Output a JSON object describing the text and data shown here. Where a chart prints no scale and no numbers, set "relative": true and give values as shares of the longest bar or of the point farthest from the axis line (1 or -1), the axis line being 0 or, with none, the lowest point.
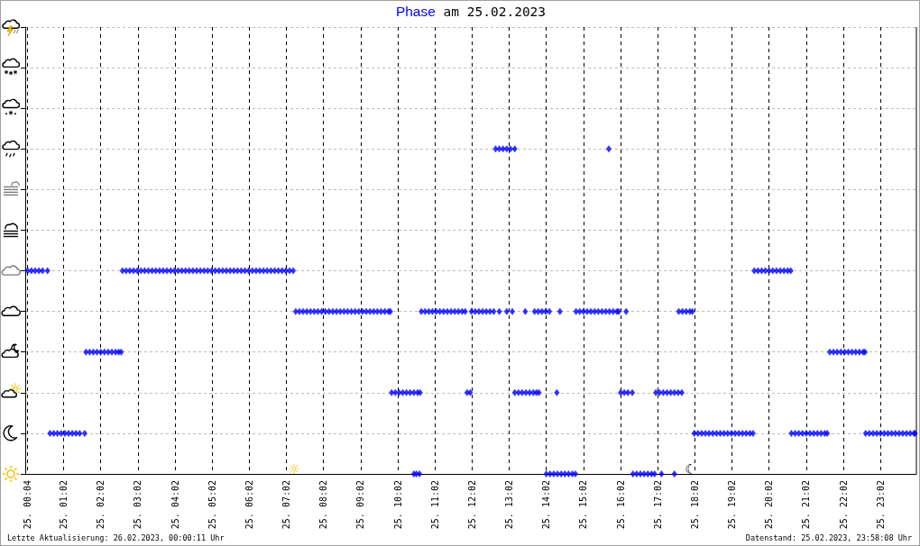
{
  "chart_data": {
    "type": "scatter",
    "title": "am 25.02.2023",
    "legend": "top",
    "marker": "diamond",
    "grid": true,
    "relative": true,
    "xlim": [
      "2023-02-25T00:00",
      "2023-02-26T00:00"
    ],
    "xticks": [
      {
        "value": "2023-02-25T00:04",
        "label": "25. 00:04"
      },
      {
        "value": "2023-02-25T01:02",
        "label": "25. 01:02"
      },
      {
        "value": "2023-02-25T02:02",
        "label": "25. 02:02"
      },
      {
        "value": "2023-02-25T03:02",
        "label": "25. 03:02"
      },
      {
        "value": "2023-02-25T04:02",
        "label": "25. 04:02"
      },
      {
        "value": "2023-02-25T05:02",
        "label": "25. 05:02"
      },
      {
        "value": "2023-02-25T06:02",
        "label": "25. 06:02"
      },
      {
        "value": "2023-02-25T07:02",
        "label": "25. 07:02"
      },
      {
        "value": "2023-02-25T08:02",
        "label": "25. 08:02"
      },
      {
        "value": "2023-02-25T09:02",
        "label": "25. 09:02"
      },
      {
        "value": "2023-02-25T10:02",
        "label": "25. 10:02"
      },
      {
        "value": "2023-02-25T11:02",
        "label": "25. 11:02"
      },
      {
        "value": "2023-02-25T12:02",
        "label": "25. 12:02"
      },
      {
        "value": "2023-02-25T13:02",
        "label": "25. 13:02"
      },
      {
        "value": "2023-02-25T14:02",
        "label": "25. 14:02"
      },
      {
        "value": "2023-02-25T15:02",
        "label": "25. 15:02"
      },
      {
        "value": "2023-02-25T16:02",
        "label": "25. 16:02"
      },
      {
        "value": "2023-02-25T17:02",
        "label": "25. 17:02"
      },
      {
        "value": "2023-02-25T18:02",
        "label": "25. 18:02"
      },
      {
        "value": "2023-02-25T19:02",
        "label": "25. 19:02"
      },
      {
        "value": "2023-02-25T20:02",
        "label": "25. 20:02"
      },
      {
        "value": "2023-02-25T21:02",
        "label": "25. 21:02"
      },
      {
        "value": "2023-02-25T22:02",
        "label": "25. 22:02"
      },
      {
        "value": "2023-02-25T23:02",
        "label": "25. 23:02"
      }
    ],
    "x": [
      "2023-02-25T00:04",
      "2023-02-25T00:10",
      "2023-02-25T00:16",
      "2023-02-25T00:22",
      "2023-02-25T00:28",
      "2023-02-25T00:36",
      "2023-02-25T00:40",
      "2023-02-25T00:46",
      "2023-02-25T00:52",
      "2023-02-25T00:58",
      "2023-02-25T01:04",
      "2023-02-25T01:10",
      "2023-02-25T01:16",
      "2023-02-25T01:22",
      "2023-02-25T01:28",
      "2023-02-25T01:36",
      "2023-02-25T01:38",
      "2023-02-25T01:44",
      "2023-02-25T01:50",
      "2023-02-25T01:56",
      "2023-02-25T02:02",
      "2023-02-25T02:08",
      "2023-02-25T02:14",
      "2023-02-25T02:20",
      "2023-02-25T02:26",
      "2023-02-25T02:31",
      "2023-02-25T02:35",
      "2023-02-25T02:37",
      "2023-02-25T02:43",
      "2023-02-25T02:49",
      "2023-02-25T02:55",
      "2023-02-25T03:01",
      "2023-02-25T03:07",
      "2023-02-25T03:13",
      "2023-02-25T03:19",
      "2023-02-25T03:25",
      "2023-02-25T03:31",
      "2023-02-25T03:37",
      "2023-02-25T03:43",
      "2023-02-25T03:49",
      "2023-02-25T03:55",
      "2023-02-25T04:01",
      "2023-02-25T04:07",
      "2023-02-25T04:13",
      "2023-02-25T04:19",
      "2023-02-25T04:25",
      "2023-02-25T04:31",
      "2023-02-25T04:37",
      "2023-02-25T04:43",
      "2023-02-25T04:49",
      "2023-02-25T04:55",
      "2023-02-25T05:01",
      "2023-02-25T05:07",
      "2023-02-25T05:13",
      "2023-02-25T05:19",
      "2023-02-25T05:25",
      "2023-02-25T05:31",
      "2023-02-25T05:37",
      "2023-02-25T05:43",
      "2023-02-25T05:49",
      "2023-02-25T05:55",
      "2023-02-25T06:01",
      "2023-02-25T06:07",
      "2023-02-25T06:13",
      "2023-02-25T06:19",
      "2023-02-25T06:25",
      "2023-02-25T06:31",
      "2023-02-25T06:37",
      "2023-02-25T06:43",
      "2023-02-25T06:49",
      "2023-02-25T06:55",
      "2023-02-25T07:01",
      "2023-02-25T07:07",
      "2023-02-25T07:13",
      "2023-02-25T07:17",
      "2023-02-25T07:23",
      "2023-02-25T07:29",
      "2023-02-25T07:35",
      "2023-02-25T07:41",
      "2023-02-25T07:47",
      "2023-02-25T07:53",
      "2023-02-25T07:59",
      "2023-02-25T08:05",
      "2023-02-25T08:11",
      "2023-02-25T08:17",
      "2023-02-25T08:23",
      "2023-02-25T08:29",
      "2023-02-25T08:35",
      "2023-02-25T08:41",
      "2023-02-25T08:47",
      "2023-02-25T08:53",
      "2023-02-25T08:59",
      "2023-02-25T09:05",
      "2023-02-25T09:11",
      "2023-02-25T09:17",
      "2023-02-25T09:23",
      "2023-02-25T09:29",
      "2023-02-25T09:35",
      "2023-02-25T09:41",
      "2023-02-25T09:47",
      "2023-02-25T09:50",
      "2023-02-25T09:52",
      "2023-02-25T09:58",
      "2023-02-25T10:04",
      "2023-02-25T10:10",
      "2023-02-25T10:16",
      "2023-02-25T10:22",
      "2023-02-25T10:28",
      "2023-02-25T10:34",
      "2023-02-25T10:38",
      "2023-02-25T10:28",
      "2023-02-25T10:32",
      "2023-02-25T10:37",
      "2023-02-25T10:40",
      "2023-02-25T10:46",
      "2023-02-25T10:52",
      "2023-02-25T10:58",
      "2023-02-25T11:04",
      "2023-02-25T11:10",
      "2023-02-25T11:16",
      "2023-02-25T11:22",
      "2023-02-25T11:28",
      "2023-02-25T11:34",
      "2023-02-25T11:40",
      "2023-02-25T11:46",
      "2023-02-25T11:51",
      "2023-02-25T11:54",
      "2023-02-25T11:59",
      "2023-02-25T12:01",
      "2023-02-25T12:07",
      "2023-02-25T12:13",
      "2023-02-25T12:19",
      "2023-02-25T12:25",
      "2023-02-25T12:31",
      "2023-02-25T12:37",
      "2023-02-25T12:40",
      "2023-02-25T12:46",
      "2023-02-25T12:52",
      "2023-02-25T12:58",
      "2023-02-25T13:04",
      "2023-02-25T13:11",
      "2023-02-25T12:46",
      "2023-02-25T12:58",
      "2023-02-25T13:07",
      "2023-02-25T13:28",
      "2023-02-25T13:11",
      "2023-02-25T13:17",
      "2023-02-25T13:23",
      "2023-02-25T13:29",
      "2023-02-25T13:35",
      "2023-02-25T13:41",
      "2023-02-25T13:46",
      "2023-02-25T13:50",
      "2023-02-25T13:43",
      "2023-02-25T13:49",
      "2023-02-25T13:55",
      "2023-02-25T14:01",
      "2023-02-25T14:07",
      "2023-02-25T14:02",
      "2023-02-25T14:08",
      "2023-02-25T14:14",
      "2023-02-25T14:20",
      "2023-02-25T14:26",
      "2023-02-25T14:32",
      "2023-02-25T14:38",
      "2023-02-25T14:44",
      "2023-02-25T14:49",
      "2023-02-25T14:19",
      "2023-02-25T14:24",
      "2023-02-25T14:50",
      "2023-02-25T14:56",
      "2023-02-25T15:02",
      "2023-02-25T15:08",
      "2023-02-25T15:14",
      "2023-02-25T15:20",
      "2023-02-25T15:26",
      "2023-02-25T15:32",
      "2023-02-25T15:38",
      "2023-02-25T15:44",
      "2023-02-25T15:50",
      "2023-02-25T15:56",
      "2023-02-25T15:59",
      "2023-02-25T15:43",
      "2023-02-25T16:02",
      "2023-02-25T16:08",
      "2023-02-25T16:14",
      "2023-02-25T16:21",
      "2023-02-25T16:11",
      "2023-02-25T16:22",
      "2023-02-25T16:28",
      "2023-02-25T16:34",
      "2023-02-25T16:40",
      "2023-02-25T16:46",
      "2023-02-25T16:52",
      "2023-02-25T16:57",
      "2023-02-25T16:59",
      "2023-02-25T17:05",
      "2023-02-25T17:11",
      "2023-02-25T17:17",
      "2023-02-25T17:23",
      "2023-02-25T17:29",
      "2023-02-25T17:35",
      "2023-02-25T17:41",
      "2023-02-25T17:08",
      "2023-02-25T17:29",
      "2023-02-25T17:36",
      "2023-02-25T17:42",
      "2023-02-25T17:48",
      "2023-02-25T17:54",
      "2023-02-25T17:58",
      "2023-02-25T18:01",
      "2023-02-25T18:07",
      "2023-02-25T18:13",
      "2023-02-25T18:19",
      "2023-02-25T18:25",
      "2023-02-25T18:31",
      "2023-02-25T18:37",
      "2023-02-25T18:43",
      "2023-02-25T18:49",
      "2023-02-25T18:55",
      "2023-02-25T19:01",
      "2023-02-25T19:07",
      "2023-02-25T19:13",
      "2023-02-25T19:19",
      "2023-02-25T19:25",
      "2023-02-25T19:31",
      "2023-02-25T19:36",
      "2023-02-25T19:38",
      "2023-02-25T19:44",
      "2023-02-25T19:50",
      "2023-02-25T19:56",
      "2023-02-25T20:02",
      "2023-02-25T20:08",
      "2023-02-25T20:14",
      "2023-02-25T20:20",
      "2023-02-25T20:26",
      "2023-02-25T20:32",
      "2023-02-25T20:37",
      "2023-02-25T20:38",
      "2023-02-25T20:44",
      "2023-02-25T20:50",
      "2023-02-25T20:56",
      "2023-02-25T21:02",
      "2023-02-25T21:08",
      "2023-02-25T21:14",
      "2023-02-25T21:20",
      "2023-02-25T21:26",
      "2023-02-25T21:32",
      "2023-02-25T21:36",
      "2023-02-25T21:40",
      "2023-02-25T21:46",
      "2023-02-25T21:52",
      "2023-02-25T21:58",
      "2023-02-25T22:04",
      "2023-02-25T22:10",
      "2023-02-25T22:16",
      "2023-02-25T22:22",
      "2023-02-25T22:28",
      "2023-02-25T22:34",
      "2023-02-25T22:37",
      "2023-02-25T22:38",
      "2023-02-25T22:44",
      "2023-02-25T22:50",
      "2023-02-25T22:56",
      "2023-02-25T23:02",
      "2023-02-25T23:08",
      "2023-02-25T23:14",
      "2023-02-25T23:20",
      "2023-02-25T23:26",
      "2023-02-25T23:32",
      "2023-02-25T23:38",
      "2023-02-25T23:44",
      "2023-02-25T23:50",
      "2023-02-25T23:56",
      "2023-02-25T23:58"
    ],
    "series": [
      {
        "name": "Phase",
        "color": "#0000ff",
        "values": [
          0.625,
          0.625,
          0.625,
          0.625,
          0.625,
          0.625,
          0.125,
          0.125,
          0.125,
          0.125,
          0.125,
          0.125,
          0.125,
          0.125,
          0.125,
          0.125,
          0.375,
          0.375,
          0.375,
          0.375,
          0.375,
          0.375,
          0.375,
          0.375,
          0.375,
          0.375,
          0.375,
          0.625,
          0.625,
          0.625,
          0.625,
          0.625,
          0.625,
          0.625,
          0.625,
          0.625,
          0.625,
          0.625,
          0.625,
          0.625,
          0.625,
          0.625,
          0.625,
          0.625,
          0.625,
          0.625,
          0.625,
          0.625,
          0.625,
          0.625,
          0.625,
          0.625,
          0.625,
          0.625,
          0.625,
          0.625,
          0.625,
          0.625,
          0.625,
          0.625,
          0.625,
          0.625,
          0.625,
          0.625,
          0.625,
          0.625,
          0.625,
          0.625,
          0.625,
          0.625,
          0.625,
          0.625,
          0.625,
          0.625,
          0.5,
          0.5,
          0.5,
          0.5,
          0.5,
          0.5,
          0.5,
          0.5,
          0.5,
          0.5,
          0.5,
          0.5,
          0.5,
          0.5,
          0.5,
          0.5,
          0.5,
          0.5,
          0.5,
          0.5,
          0.5,
          0.5,
          0.5,
          0.5,
          0.5,
          0.5,
          0.5,
          0.25,
          0.25,
          0.25,
          0.25,
          0.25,
          0.25,
          0.25,
          0.25,
          0.25,
          0,
          0,
          0,
          0.5,
          0.5,
          0.5,
          0.5,
          0.5,
          0.5,
          0.5,
          0.5,
          0.5,
          0.5,
          0.5,
          0.5,
          0.5,
          0.25,
          0.25,
          0.5,
          0.5,
          0.5,
          0.5,
          0.5,
          0.5,
          0.5,
          1,
          1,
          1,
          1,
          1,
          1,
          0.5,
          0.5,
          0.5,
          0.5,
          0.25,
          0.25,
          0.25,
          0.25,
          0.25,
          0.25,
          0.25,
          0.25,
          0.5,
          0.5,
          0.5,
          0.5,
          0.5,
          0,
          0,
          0,
          0,
          0,
          0,
          0,
          0,
          0,
          0.25,
          0.5,
          0.5,
          0.5,
          0.5,
          0.5,
          0.5,
          0.5,
          0.5,
          0.5,
          0.5,
          0.5,
          0.5,
          0.5,
          0.5,
          1,
          0.25,
          0.25,
          0.25,
          0.25,
          0.5,
          0,
          0,
          0,
          0,
          0,
          0,
          0,
          0.25,
          0.25,
          0.25,
          0.25,
          0.25,
          0.25,
          0.25,
          0.25,
          0,
          0,
          0.5,
          0.5,
          0.5,
          0.5,
          0.5,
          0.125,
          0.125,
          0.125,
          0.125,
          0.125,
          0.125,
          0.125,
          0.125,
          0.125,
          0.125,
          0.125,
          0.125,
          0.125,
          0.125,
          0.125,
          0.125,
          0.125,
          0.625,
          0.625,
          0.625,
          0.625,
          0.625,
          0.625,
          0.625,
          0.625,
          0.625,
          0.625,
          0.625,
          0.125,
          0.125,
          0.125,
          0.125,
          0.125,
          0.125,
          0.125,
          0.125,
          0.125,
          0.125,
          0.125,
          0.375,
          0.375,
          0.375,
          0.375,
          0.375,
          0.375,
          0.375,
          0.375,
          0.375,
          0.375,
          0.375,
          0.125,
          0.125,
          0.125,
          0.125,
          0.125,
          0.125,
          0.125,
          0.125,
          0.125,
          0.125,
          0.125,
          0.125,
          0.125,
          0.125,
          0.125
        ]
      }
    ],
    "annotations": [
      "Letzte Aktualisierung: 26.02.2023, 00:00:11 Uhr",
      "Datenstand: 25.02.2023, 23:58:08 Uhr",
      "☼",
      "☾"
    ]
  }
}
